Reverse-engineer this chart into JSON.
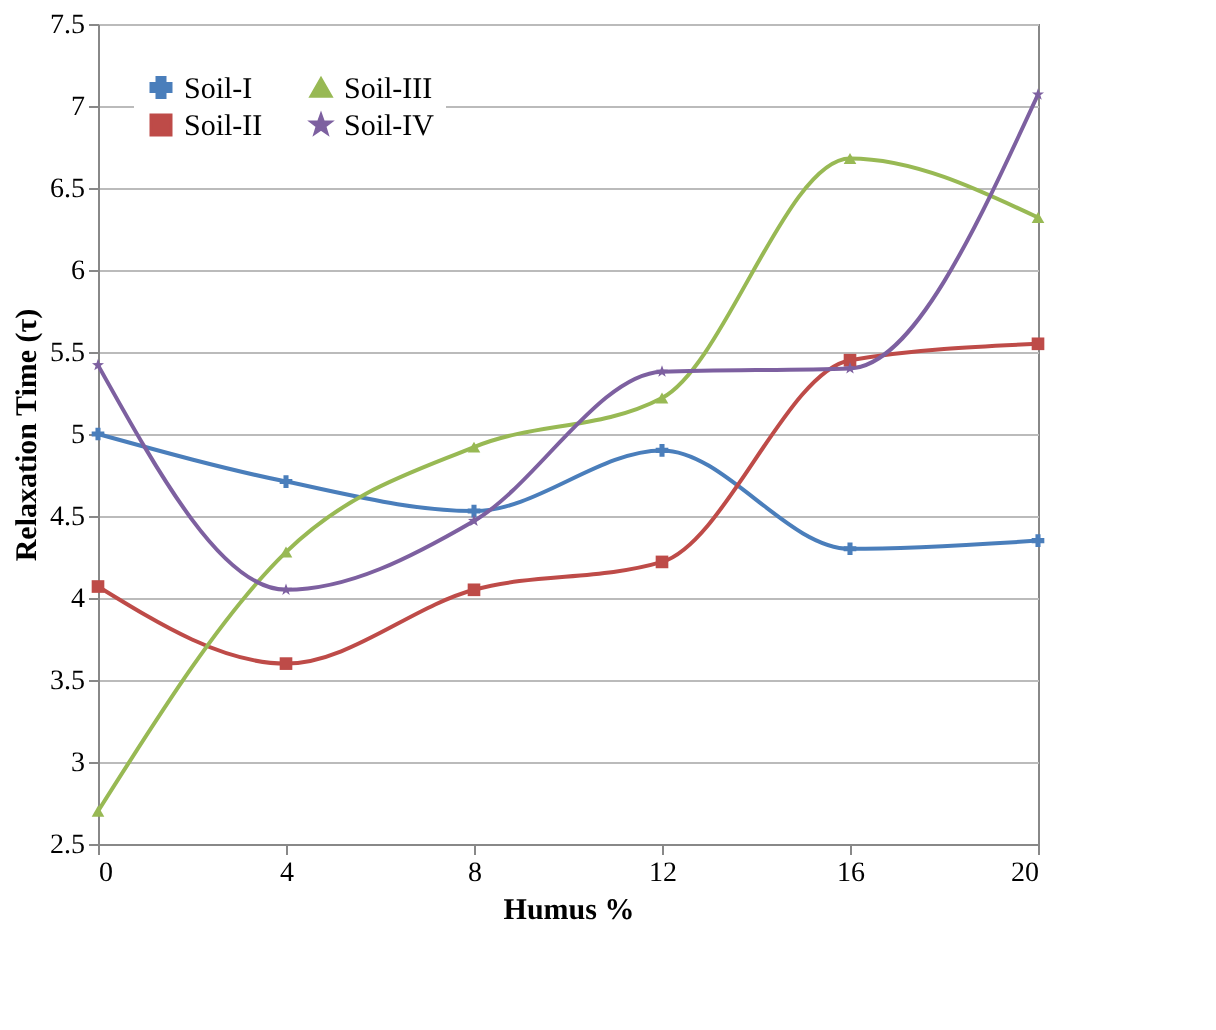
{
  "chart_data": {
    "type": "line",
    "xlabel": "Humus  %",
    "ylabel": "Relaxation Time (τ)",
    "x": [
      0,
      4,
      8,
      12,
      16,
      20
    ],
    "series": [
      {
        "name": "Soil-I",
        "color": "#4a7ebb",
        "marker": "cross",
        "values": [
          5.0,
          4.71,
          4.53,
          4.9,
          4.3,
          4.35
        ]
      },
      {
        "name": "Soil-II",
        "color": "#be4b48",
        "marker": "square",
        "values": [
          4.07,
          3.6,
          4.05,
          4.22,
          5.45,
          5.55
        ]
      },
      {
        "name": "Soil-III",
        "color": "#98b954",
        "marker": "triangle",
        "values": [
          2.7,
          4.28,
          4.92,
          5.22,
          6.68,
          6.32
        ]
      },
      {
        "name": "Soil-IV",
        "color": "#7d60a0",
        "marker": "star",
        "values": [
          5.42,
          4.05,
          4.47,
          5.38,
          5.4,
          7.07
        ]
      }
    ],
    "xlim": [
      0,
      20
    ],
    "xticks": [
      0,
      4,
      8,
      12,
      16,
      20
    ],
    "ylim": [
      2.5,
      7.5
    ],
    "yticks": [
      2.5,
      3,
      3.5,
      4,
      4.5,
      5,
      5.5,
      6,
      6.5,
      7,
      7.5
    ],
    "grid": "y",
    "legend": "top left",
    "line_style": "solid"
  }
}
